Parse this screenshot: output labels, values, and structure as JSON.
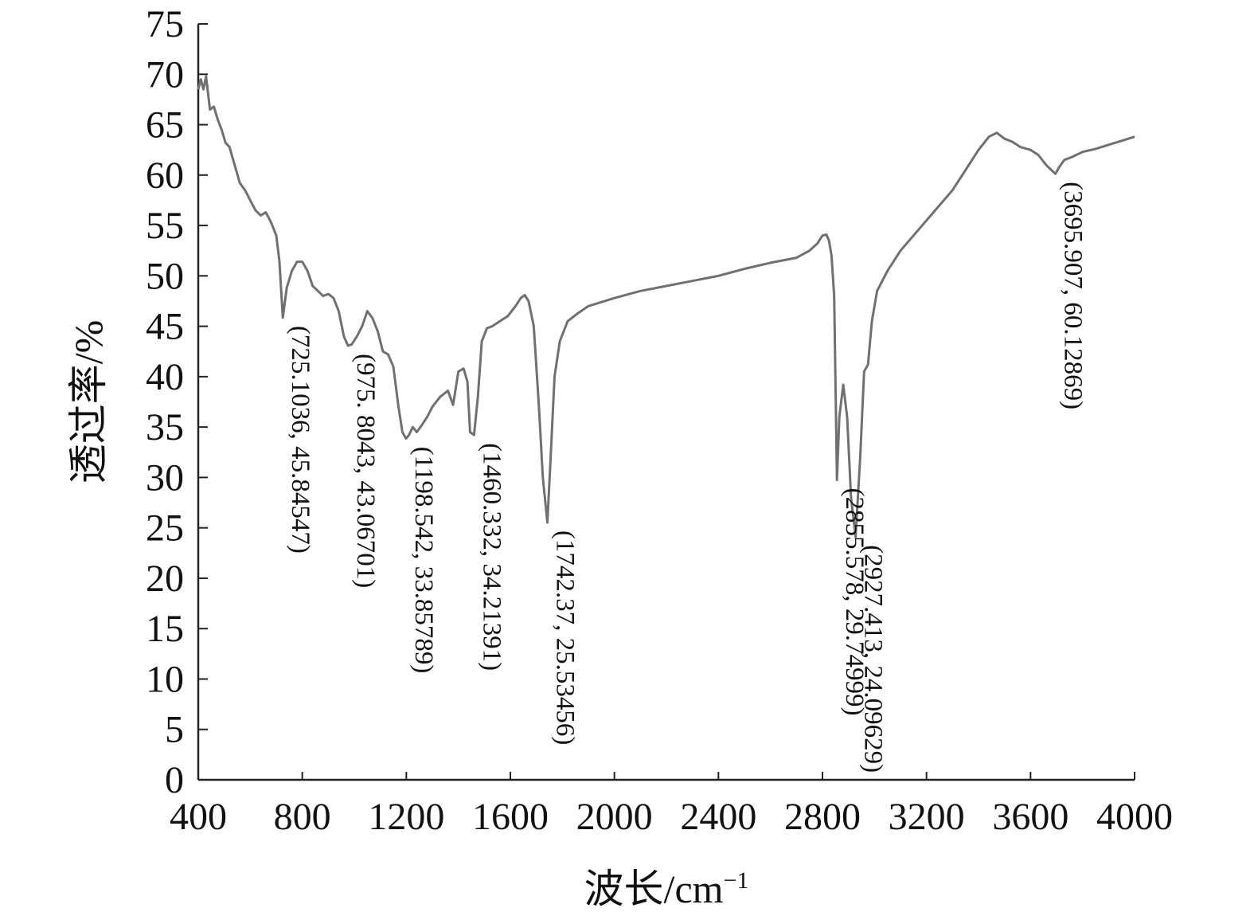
{
  "chart_data": {
    "type": "line",
    "xlabel": "波长/cm",
    "xlabel_superscript": "−1",
    "ylabel": "透过率/%",
    "xlim": [
      400,
      4000
    ],
    "ylim": [
      0,
      75
    ],
    "x_ticks": [
      400,
      800,
      1200,
      1600,
      2000,
      2400,
      2800,
      3200,
      3600,
      4000
    ],
    "y_ticks": [
      0,
      5,
      10,
      15,
      20,
      25,
      30,
      35,
      40,
      45,
      50,
      55,
      60,
      65,
      70,
      75
    ],
    "grid": false,
    "line_color": "#707070",
    "series": [
      {
        "x": [
          400,
          410,
          420,
          430,
          445,
          460,
          475,
          490,
          505,
          520,
          540,
          560,
          580,
          600,
          620,
          640,
          660,
          680,
          700,
          712,
          725.1036,
          740,
          760,
          780,
          800,
          820,
          840,
          860,
          880,
          900,
          920,
          940,
          960,
          975.8043,
          990,
          1010,
          1030,
          1050,
          1070,
          1090,
          1110,
          1130,
          1150,
          1170,
          1185,
          1198.542,
          1210,
          1225,
          1240,
          1260,
          1280,
          1300,
          1330,
          1360,
          1380,
          1400,
          1420,
          1435,
          1445,
          1460.332,
          1475,
          1490,
          1510,
          1530,
          1560,
          1590,
          1620,
          1640,
          1655,
          1670,
          1690,
          1710,
          1725,
          1742.37,
          1755,
          1770,
          1790,
          1820,
          1860,
          1900,
          2000,
          2100,
          2200,
          2300,
          2400,
          2500,
          2600,
          2700,
          2750,
          2780,
          2800,
          2815,
          2825,
          2835,
          2845,
          2855.578,
          2865,
          2880,
          2895,
          2910,
          2927.413,
          2945,
          2960,
          2975,
          2990,
          3010,
          3050,
          3100,
          3200,
          3300,
          3350,
          3400,
          3440,
          3470,
          3500,
          3530,
          3560,
          3600,
          3630,
          3660,
          3680,
          3695.907,
          3710,
          3730,
          3760,
          3800,
          3850,
          3900,
          3950,
          4000
        ],
        "y": [
          68.5,
          69.5,
          68.5,
          69.8,
          66.5,
          66.8,
          65.5,
          64.5,
          63.2,
          62.8,
          61.0,
          59.2,
          58.5,
          57.5,
          56.5,
          56.0,
          56.3,
          55.3,
          54.0,
          51.5,
          45.85,
          48.8,
          50.5,
          51.4,
          51.4,
          50.5,
          49.0,
          48.5,
          48.0,
          48.2,
          47.8,
          46.5,
          44.0,
          43.07,
          43.2,
          44.0,
          45.0,
          46.5,
          45.8,
          44.5,
          42.5,
          42.2,
          41.0,
          37.0,
          34.5,
          33.86,
          34.2,
          35.0,
          34.5,
          35.2,
          36.0,
          37.0,
          38.0,
          38.6,
          37.2,
          40.5,
          40.8,
          39.5,
          34.5,
          34.21,
          38.0,
          43.5,
          44.8,
          45.0,
          45.5,
          46.0,
          47.0,
          47.8,
          48.1,
          47.5,
          45.0,
          37.0,
          30.0,
          25.53,
          32.0,
          40.0,
          43.5,
          45.5,
          46.3,
          47.0,
          47.8,
          48.5,
          49.0,
          49.5,
          50.0,
          50.7,
          51.3,
          51.8,
          52.5,
          53.2,
          54.0,
          54.1,
          53.5,
          52.0,
          48.0,
          29.75,
          36.0,
          39.2,
          36.0,
          28.0,
          24.1,
          32.0,
          40.5,
          41.2,
          45.5,
          48.5,
          50.5,
          52.5,
          55.5,
          58.5,
          60.5,
          62.5,
          63.8,
          64.2,
          63.6,
          63.3,
          62.8,
          62.5,
          62.0,
          61.0,
          60.5,
          60.13,
          60.8,
          61.5,
          61.8,
          62.3,
          62.6,
          63.0,
          63.4,
          63.8
        ]
      }
    ],
    "annotations": [
      {
        "x": 725.1036,
        "y": 45.84547,
        "text": "(725.1036, 45.84547)"
      },
      {
        "x": 975.8043,
        "y": 43.06701,
        "text": "(975. 8043, 43.06701)"
      },
      {
        "x": 1198.542,
        "y": 33.85789,
        "text": "(1198.542, 33.85789)"
      },
      {
        "x": 1460.332,
        "y": 34.21391,
        "text": "(1460.332, 34.21391)"
      },
      {
        "x": 1742.37,
        "y": 25.53456,
        "text": "(1742.37, 25.53456)"
      },
      {
        "x": 2855.578,
        "y": 29.74999,
        "text": "(2855.578, 29.74999)"
      },
      {
        "x": 2927.413,
        "y": 24.09629,
        "text": "(2927.413, 24.09629)"
      },
      {
        "x": 3695.907,
        "y": 60.12869,
        "text": "(3695.907, 60.12869)"
      }
    ]
  }
}
